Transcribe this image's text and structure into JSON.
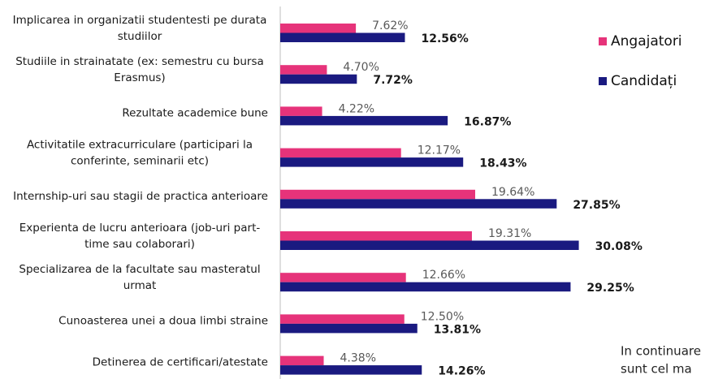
{
  "chart_data": {
    "type": "hbar",
    "categories": [
      [
        "Implicarea in organizatii studentesti pe durata",
        "studiilor"
      ],
      [
        "Studiile in strainatate (ex: semestru cu bursa",
        "Erasmus)"
      ],
      [
        "Rezultate academice bune"
      ],
      [
        "Activitatile extracurriculare (participari la",
        "conferinte, seminarii etc)"
      ],
      [
        "Internship-uri sau stagii de practica anterioare"
      ],
      [
        "Experienta de lucru anterioara (job-uri part-",
        "time sau colaborari)"
      ],
      [
        "Specializarea de la facultate sau masteratul",
        "urmat"
      ],
      [
        "Cunoasterea unei a doua limbi straine"
      ],
      [
        "Detinerea de certificari/atestate"
      ]
    ],
    "series": [
      {
        "name": "Angajatori",
        "color": "#e6337a",
        "values": [
          7.62,
          4.7,
          4.22,
          12.17,
          19.64,
          19.31,
          12.66,
          12.5,
          4.38
        ],
        "value_labels": [
          "7.62%",
          "4.70%",
          "4.22%",
          "12.17%",
          "19.64%",
          "19.31%",
          "12.66%",
          "12.50%",
          "4.38%"
        ]
      },
      {
        "name": "Candidați",
        "color": "#1a1a80",
        "values": [
          12.56,
          7.72,
          16.87,
          18.43,
          27.85,
          30.08,
          29.25,
          13.81,
          14.26
        ],
        "value_labels": [
          "12.56%",
          "7.72%",
          "16.87%",
          "18.43%",
          "27.85%",
          "30.08%",
          "29.25%",
          "13.81%",
          "14.26%"
        ]
      }
    ],
    "legend": "right",
    "annotation": [
      "In continuare",
      "sunt cel ma"
    ]
  }
}
